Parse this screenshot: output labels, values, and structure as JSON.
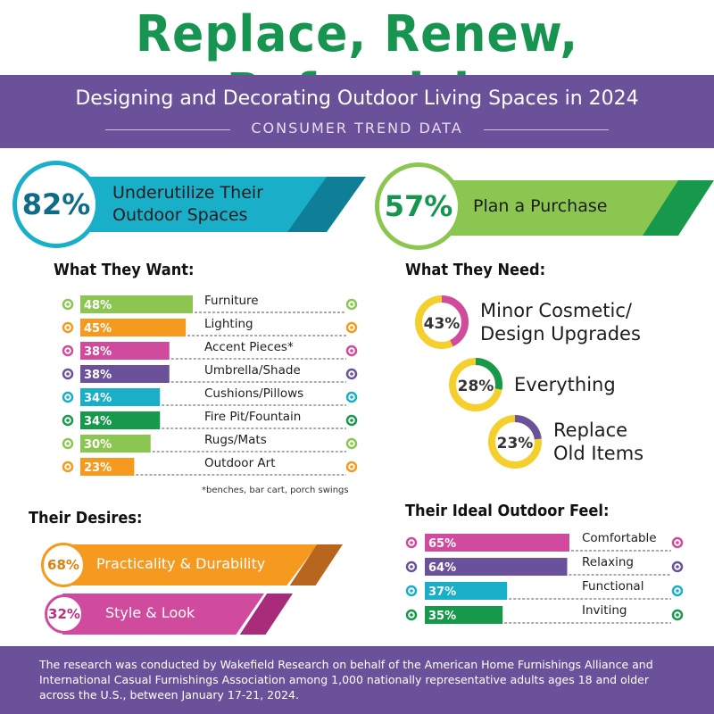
{
  "title": "Replace, Renew, Refurnish",
  "subtitle": "Designing and Decorating Outdoor Living Spaces in 2024",
  "tagline": "CONSUMER TREND DATA",
  "banner_left": {
    "value": "82%",
    "text_line1": "Underutilize Their",
    "text_line2": "Outdoor Spaces"
  },
  "banner_right": {
    "value": "57%",
    "text": "Plan a Purchase"
  },
  "colors": {
    "purple": "#6b5199",
    "green_title": "#179550",
    "teal": "#1aafc9",
    "lime": "#8bc750",
    "orange": "#f59a1f",
    "magenta": "#d04a9d",
    "dark_green": "#16994a",
    "yellow": "#f5cf2c"
  },
  "chart_data": [
    {
      "type": "bar",
      "title": "What They Want:",
      "categories": [
        "Furniture",
        "Lighting",
        "Accent Pieces*",
        "Umbrella/Shade",
        "Cushions/Pillows",
        "Fire Pit/Fountain",
        "Rugs/Mats",
        "Outdoor Art"
      ],
      "values": [
        48,
        45,
        38,
        38,
        34,
        34,
        30,
        23
      ],
      "value_labels": [
        "48%",
        "45%",
        "38%",
        "38%",
        "34%",
        "34%",
        "30%",
        "23%"
      ],
      "colors": [
        "#8bc750",
        "#f59a1f",
        "#d04a9d",
        "#6b5199",
        "#1aafc9",
        "#16994a",
        "#8bc750",
        "#f59a1f"
      ],
      "unit": "%"
    },
    {
      "type": "pie",
      "title": "What They Need:",
      "categories": [
        "Minor Cosmetic/ Design Upgrades",
        "Everything",
        "Replace Old Items"
      ],
      "values": [
        43,
        28,
        23
      ],
      "value_labels": [
        "43%",
        "28%",
        "23%"
      ],
      "colors": [
        "#d04a9d",
        "#16994a",
        "#6b5199"
      ],
      "unit": "%"
    },
    {
      "type": "bar",
      "title": "Their Desires:",
      "categories": [
        "Practicality & Durability",
        "Style & Look"
      ],
      "values": [
        68,
        32
      ],
      "value_labels": [
        "68%",
        "32%"
      ],
      "colors": [
        "#f59a1f",
        "#d04a9d"
      ],
      "unit": "%"
    },
    {
      "type": "bar",
      "title": "Their Ideal Outdoor Feel:",
      "categories": [
        "Comfortable",
        "Relaxing",
        "Functional",
        "Inviting"
      ],
      "values": [
        65,
        64,
        37,
        35
      ],
      "value_labels": [
        "65%",
        "64%",
        "37%",
        "35%"
      ],
      "colors": [
        "#d04a9d",
        "#6b5199",
        "#1aafc9",
        "#16994a"
      ],
      "unit": "%"
    }
  ],
  "needs_labels": [
    {
      "line1": "Minor Cosmetic/",
      "line2": "Design Upgrades"
    },
    {
      "line1": "Everything",
      "line2": ""
    },
    {
      "line1": "Replace",
      "line2": "Old Items"
    }
  ],
  "footnote": "*benches, bar cart, porch swings",
  "footer": "The research was conducted by Wakefield Research on behalf of the American Home Furnishings Alliance and International Casual Furnishings Association among 1,000 nationally representative adults ages 18 and older across the U.S., between January 17-21, 2024."
}
